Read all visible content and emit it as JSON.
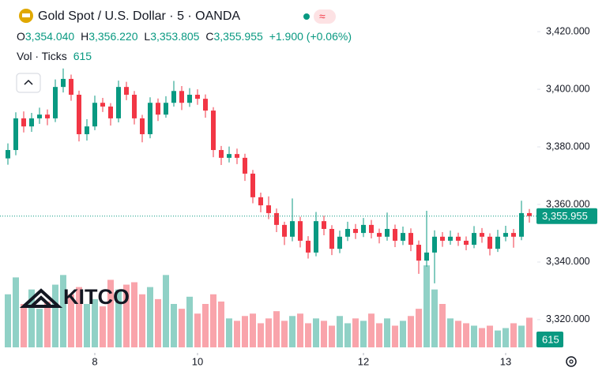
{
  "chart_data": {
    "type": "candlestick",
    "title": "Gold Spot / U.S. Dollar · 5 · OANDA",
    "header": {
      "open_label": "O",
      "open": "3,354.040",
      "high_label": "H",
      "high": "3,356.220",
      "low_label": "L",
      "low": "3,353.805",
      "close_label": "C",
      "change": "+1.900 (+0.06%)",
      "volume_label": "Vol · Ticks"
    },
    "watermark": "KITCO",
    "up_color": "#089981",
    "down_color": "#f23645",
    "ylim": [
      3309,
      3431
    ],
    "yticks": [
      {
        "value": 3320,
        "label": "3,320.000"
      },
      {
        "value": 3340,
        "label": "3,340.000"
      },
      {
        "value": 3360,
        "label": "3,360.000"
      },
      {
        "value": 3380,
        "label": "3,380.000"
      },
      {
        "value": 3400,
        "label": "3,400.000"
      },
      {
        "value": 3420,
        "label": "3,420.000"
      }
    ],
    "xticks": [
      {
        "value": 11,
        "label": "8"
      },
      {
        "value": 24,
        "label": "10"
      },
      {
        "value": 45,
        "label": "12"
      },
      {
        "value": 63,
        "label": "13"
      }
    ],
    "last_price": {
      "value": 3355.955,
      "label": "3,355.955"
    },
    "volume_lim": [
      0,
      1800
    ],
    "ohlc": [
      [
        3376.0,
        3381.2,
        3373.8,
        3378.9
      ],
      [
        3378.9,
        3392.0,
        3377.1,
        3389.9
      ],
      [
        3389.9,
        3392.3,
        3385.0,
        3387.1
      ],
      [
        3387.1,
        3391.8,
        3385.2,
        3389.9
      ],
      [
        3389.9,
        3393.6,
        3388.0,
        3391.2
      ],
      [
        3391.2,
        3393.0,
        3387.5,
        3389.9
      ],
      [
        3389.9,
        3403.4,
        3388.6,
        3400.8
      ],
      [
        3400.8,
        3407.2,
        3398.9,
        3403.6
      ],
      [
        3403.6,
        3405.1,
        3396.0,
        3398.1
      ],
      [
        3398.1,
        3399.5,
        3381.9,
        3384.4
      ],
      [
        3384.4,
        3389.6,
        3382.2,
        3387.1
      ],
      [
        3387.1,
        3397.8,
        3385.8,
        3395.3
      ],
      [
        3395.3,
        3397.0,
        3392.1,
        3394.0
      ],
      [
        3394.0,
        3395.2,
        3387.4,
        3389.9
      ],
      [
        3389.9,
        3403.0,
        3388.5,
        3400.8
      ],
      [
        3400.8,
        3402.6,
        3396.2,
        3398.1
      ],
      [
        3398.1,
        3399.4,
        3387.8,
        3389.9
      ],
      [
        3389.9,
        3391.1,
        3381.6,
        3384.4
      ],
      [
        3384.4,
        3397.2,
        3383.0,
        3395.3
      ],
      [
        3395.3,
        3396.8,
        3389.0,
        3391.2
      ],
      [
        3391.2,
        3397.6,
        3390.1,
        3395.3
      ],
      [
        3395.3,
        3402.9,
        3394.0,
        3399.4
      ],
      [
        3399.4,
        3401.1,
        3392.8,
        3395.3
      ],
      [
        3395.3,
        3400.4,
        3393.9,
        3398.1
      ],
      [
        3398.1,
        3400.0,
        3394.6,
        3396.7
      ],
      [
        3396.7,
        3398.2,
        3390.1,
        3392.6
      ],
      [
        3392.6,
        3393.8,
        3376.4,
        3378.9
      ],
      [
        3378.9,
        3380.3,
        3373.7,
        3376.2
      ],
      [
        3376.2,
        3380.1,
        3374.6,
        3377.5
      ],
      [
        3377.5,
        3379.4,
        3374.0,
        3376.2
      ],
      [
        3376.2,
        3377.6,
        3368.2,
        3370.7
      ],
      [
        3370.7,
        3372.0,
        3360.4,
        3362.5
      ],
      [
        3362.5,
        3364.1,
        3357.3,
        3359.7
      ],
      [
        3359.7,
        3362.8,
        3354.9,
        3357.0
      ],
      [
        3357.0,
        3358.6,
        3350.4,
        3352.9
      ],
      [
        3352.9,
        3354.0,
        3345.9,
        3348.8
      ],
      [
        3348.8,
        3362.1,
        3347.2,
        3354.2
      ],
      [
        3354.2,
        3355.7,
        3345.1,
        3347.4
      ],
      [
        3347.4,
        3349.0,
        3341.2,
        3343.3
      ],
      [
        3343.3,
        3357.4,
        3342.0,
        3354.2
      ],
      [
        3354.2,
        3356.1,
        3349.3,
        3351.5
      ],
      [
        3351.5,
        3352.8,
        3342.4,
        3344.6
      ],
      [
        3344.6,
        3350.9,
        3343.1,
        3348.8
      ],
      [
        3348.8,
        3354.0,
        3347.3,
        3351.5
      ],
      [
        3351.5,
        3353.2,
        3348.0,
        3350.1
      ],
      [
        3350.1,
        3355.3,
        3348.7,
        3352.9
      ],
      [
        3352.9,
        3354.6,
        3348.2,
        3350.1
      ],
      [
        3350.1,
        3351.6,
        3346.5,
        3348.8
      ],
      [
        3348.8,
        3357.2,
        3347.4,
        3351.5
      ],
      [
        3351.5,
        3353.0,
        3345.2,
        3347.4
      ],
      [
        3347.4,
        3352.3,
        3345.9,
        3350.1
      ],
      [
        3350.1,
        3351.7,
        3343.8,
        3346.0
      ],
      [
        3346.0,
        3347.5,
        3335.9,
        3340.5
      ],
      [
        3340.5,
        3357.8,
        3338.4,
        3343.3
      ],
      [
        3343.3,
        3351.0,
        3332.6,
        3348.8
      ],
      [
        3348.8,
        3350.4,
        3345.3,
        3347.4
      ],
      [
        3347.4,
        3350.9,
        3346.0,
        3348.8
      ],
      [
        3348.8,
        3350.2,
        3345.6,
        3347.4
      ],
      [
        3347.4,
        3348.9,
        3344.1,
        3346.0
      ],
      [
        3346.0,
        3352.5,
        3344.8,
        3350.1
      ],
      [
        3350.1,
        3351.8,
        3346.7,
        3348.8
      ],
      [
        3348.8,
        3350.0,
        3342.3,
        3344.6
      ],
      [
        3344.6,
        3351.2,
        3343.5,
        3348.8
      ],
      [
        3348.8,
        3352.6,
        3347.2,
        3350.1
      ],
      [
        3350.1,
        3351.5,
        3345.0,
        3348.8
      ],
      [
        3348.8,
        3361.3,
        3347.6,
        3357.0
      ],
      [
        3357.0,
        3358.4,
        3353.7,
        3355.955
      ]
    ],
    "volume": [
      1100,
      1450,
      900,
      1200,
      800,
      950,
      1300,
      1500,
      1100,
      1250,
      900,
      1000,
      850,
      1400,
      1200,
      1300,
      1350,
      1100,
      1250,
      1000,
      1500,
      900,
      800,
      1050,
      700,
      900,
      1100,
      950,
      600,
      550,
      650,
      700,
      500,
      600,
      750,
      550,
      650,
      700,
      500,
      600,
      550,
      450,
      650,
      500,
      600,
      550,
      700,
      500,
      600,
      450,
      550,
      650,
      800,
      1700,
      1200,
      900,
      600,
      550,
      500,
      450,
      400,
      450,
      350,
      400,
      500,
      450,
      615
    ]
  }
}
